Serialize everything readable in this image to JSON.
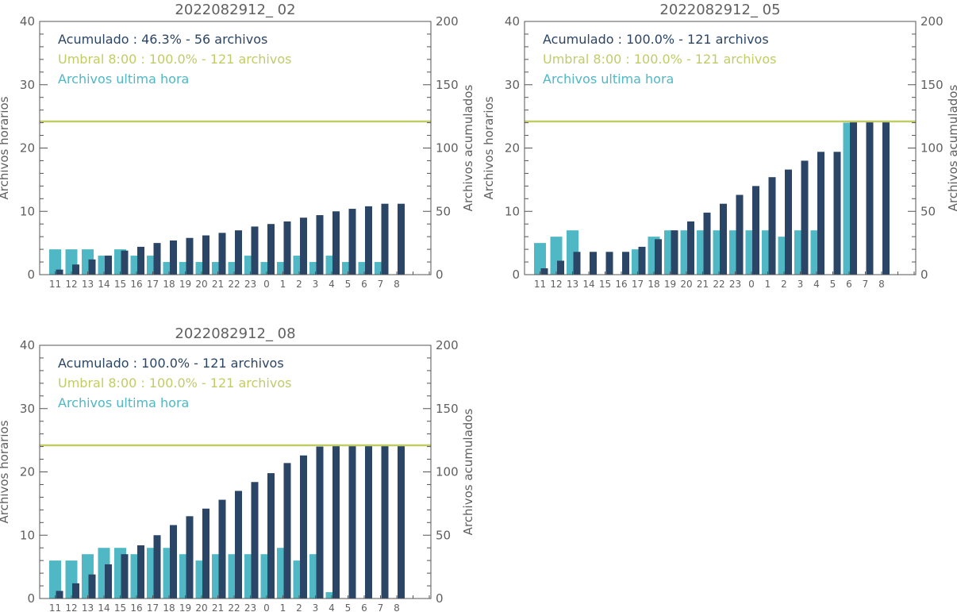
{
  "colors": {
    "cumulative": "#2b4566",
    "threshold": "#c2cc66",
    "hourly": "#4fb8c4",
    "axis": "#555555",
    "text": "#606060"
  },
  "chart_data": [
    {
      "type": "bar",
      "title": "2022082912_ 02",
      "ylabel": "Archivos horarios",
      "y2label": "Archivos acumulados",
      "ylim": [
        0,
        40
      ],
      "y2lim": [
        0,
        200
      ],
      "yticks": [
        "0",
        "10",
        "20",
        "30",
        "40"
      ],
      "y2ticks": [
        "0",
        "50",
        "100",
        "150",
        "200"
      ],
      "categories": [
        "11",
        "12",
        "13",
        "14",
        "15",
        "16",
        "17",
        "18",
        "19",
        "20",
        "21",
        "22",
        "23",
        "0",
        "1",
        "2",
        "3",
        "4",
        "5",
        "6",
        "7",
        "8"
      ],
      "legend": {
        "cumulative": "Acumulado : 46.3% - 56 archivos",
        "threshold": "Umbral 8:00 : 100.0% - 121 archivos",
        "hourly": "Archivos ultima hora"
      },
      "threshold": 121,
      "series": [
        {
          "key": "hourly",
          "axis": "left",
          "values": [
            4,
            4,
            4,
            3,
            4,
            3,
            3,
            2,
            2,
            2,
            2,
            2,
            3,
            2,
            2,
            3,
            2,
            3,
            2,
            2,
            2,
            0
          ]
        },
        {
          "key": "cumulative",
          "axis": "right",
          "values": [
            4,
            8,
            12,
            15,
            19,
            22,
            25,
            27,
            29,
            31,
            33,
            35,
            38,
            40,
            42,
            45,
            47,
            50,
            52,
            54,
            56,
            56
          ]
        }
      ]
    },
    {
      "type": "bar",
      "title": "2022082912_ 05",
      "ylabel": "Archivos horarios",
      "y2label": "Archivos acumulados",
      "ylim": [
        0,
        40
      ],
      "y2lim": [
        0,
        200
      ],
      "yticks": [
        "0",
        "10",
        "20",
        "30",
        "40"
      ],
      "y2ticks": [
        "0",
        "50",
        "100",
        "150",
        "200"
      ],
      "categories": [
        "11",
        "12",
        "13",
        "14",
        "15",
        "16",
        "17",
        "18",
        "19",
        "20",
        "21",
        "22",
        "23",
        "0",
        "1",
        "2",
        "3",
        "4",
        "5",
        "6",
        "7",
        "8"
      ],
      "legend": {
        "cumulative": "Acumulado : 100.0% - 121 archivos",
        "threshold": "Umbral 8:00 : 100.0% - 121 archivos",
        "hourly": "Archivos ultima hora"
      },
      "threshold": 121,
      "series": [
        {
          "key": "hourly",
          "axis": "left",
          "values": [
            5,
            6,
            7,
            0,
            0,
            0,
            4,
            6,
            7,
            7,
            7,
            7,
            7,
            7,
            7,
            6,
            7,
            7,
            0,
            24,
            0,
            0
          ]
        },
        {
          "key": "cumulative",
          "axis": "right",
          "values": [
            5,
            11,
            18,
            18,
            18,
            18,
            22,
            28,
            35,
            42,
            49,
            56,
            63,
            70,
            77,
            83,
            90,
            97,
            97,
            121,
            121,
            121
          ]
        }
      ]
    },
    {
      "type": "bar",
      "title": "2022082912_ 08",
      "ylabel": "Archivos horarios",
      "y2label": "Archivos acumulados",
      "ylim": [
        0,
        40
      ],
      "y2lim": [
        0,
        200
      ],
      "yticks": [
        "0",
        "10",
        "20",
        "30",
        "40"
      ],
      "y2ticks": [
        "0",
        "50",
        "100",
        "150",
        "200"
      ],
      "categories": [
        "11",
        "12",
        "13",
        "14",
        "15",
        "16",
        "17",
        "18",
        "19",
        "20",
        "21",
        "22",
        "23",
        "0",
        "1",
        "2",
        "3",
        "4",
        "5",
        "6",
        "7",
        "8"
      ],
      "legend": {
        "cumulative": "Acumulado : 100.0% - 121 archivos",
        "threshold": "Umbral 8:00 : 100.0% - 121 archivos",
        "hourly": "Archivos ultima hora"
      },
      "threshold": 121,
      "series": [
        {
          "key": "hourly",
          "axis": "left",
          "values": [
            6,
            6,
            7,
            8,
            8,
            7,
            8,
            8,
            7,
            6,
            7,
            7,
            7,
            7,
            8,
            6,
            7,
            1,
            0,
            0,
            0,
            0
          ]
        },
        {
          "key": "cumulative",
          "axis": "right",
          "values": [
            6,
            12,
            19,
            27,
            35,
            42,
            50,
            58,
            65,
            71,
            78,
            85,
            92,
            99,
            107,
            113,
            120,
            121,
            121,
            121,
            121,
            121
          ]
        }
      ]
    }
  ]
}
